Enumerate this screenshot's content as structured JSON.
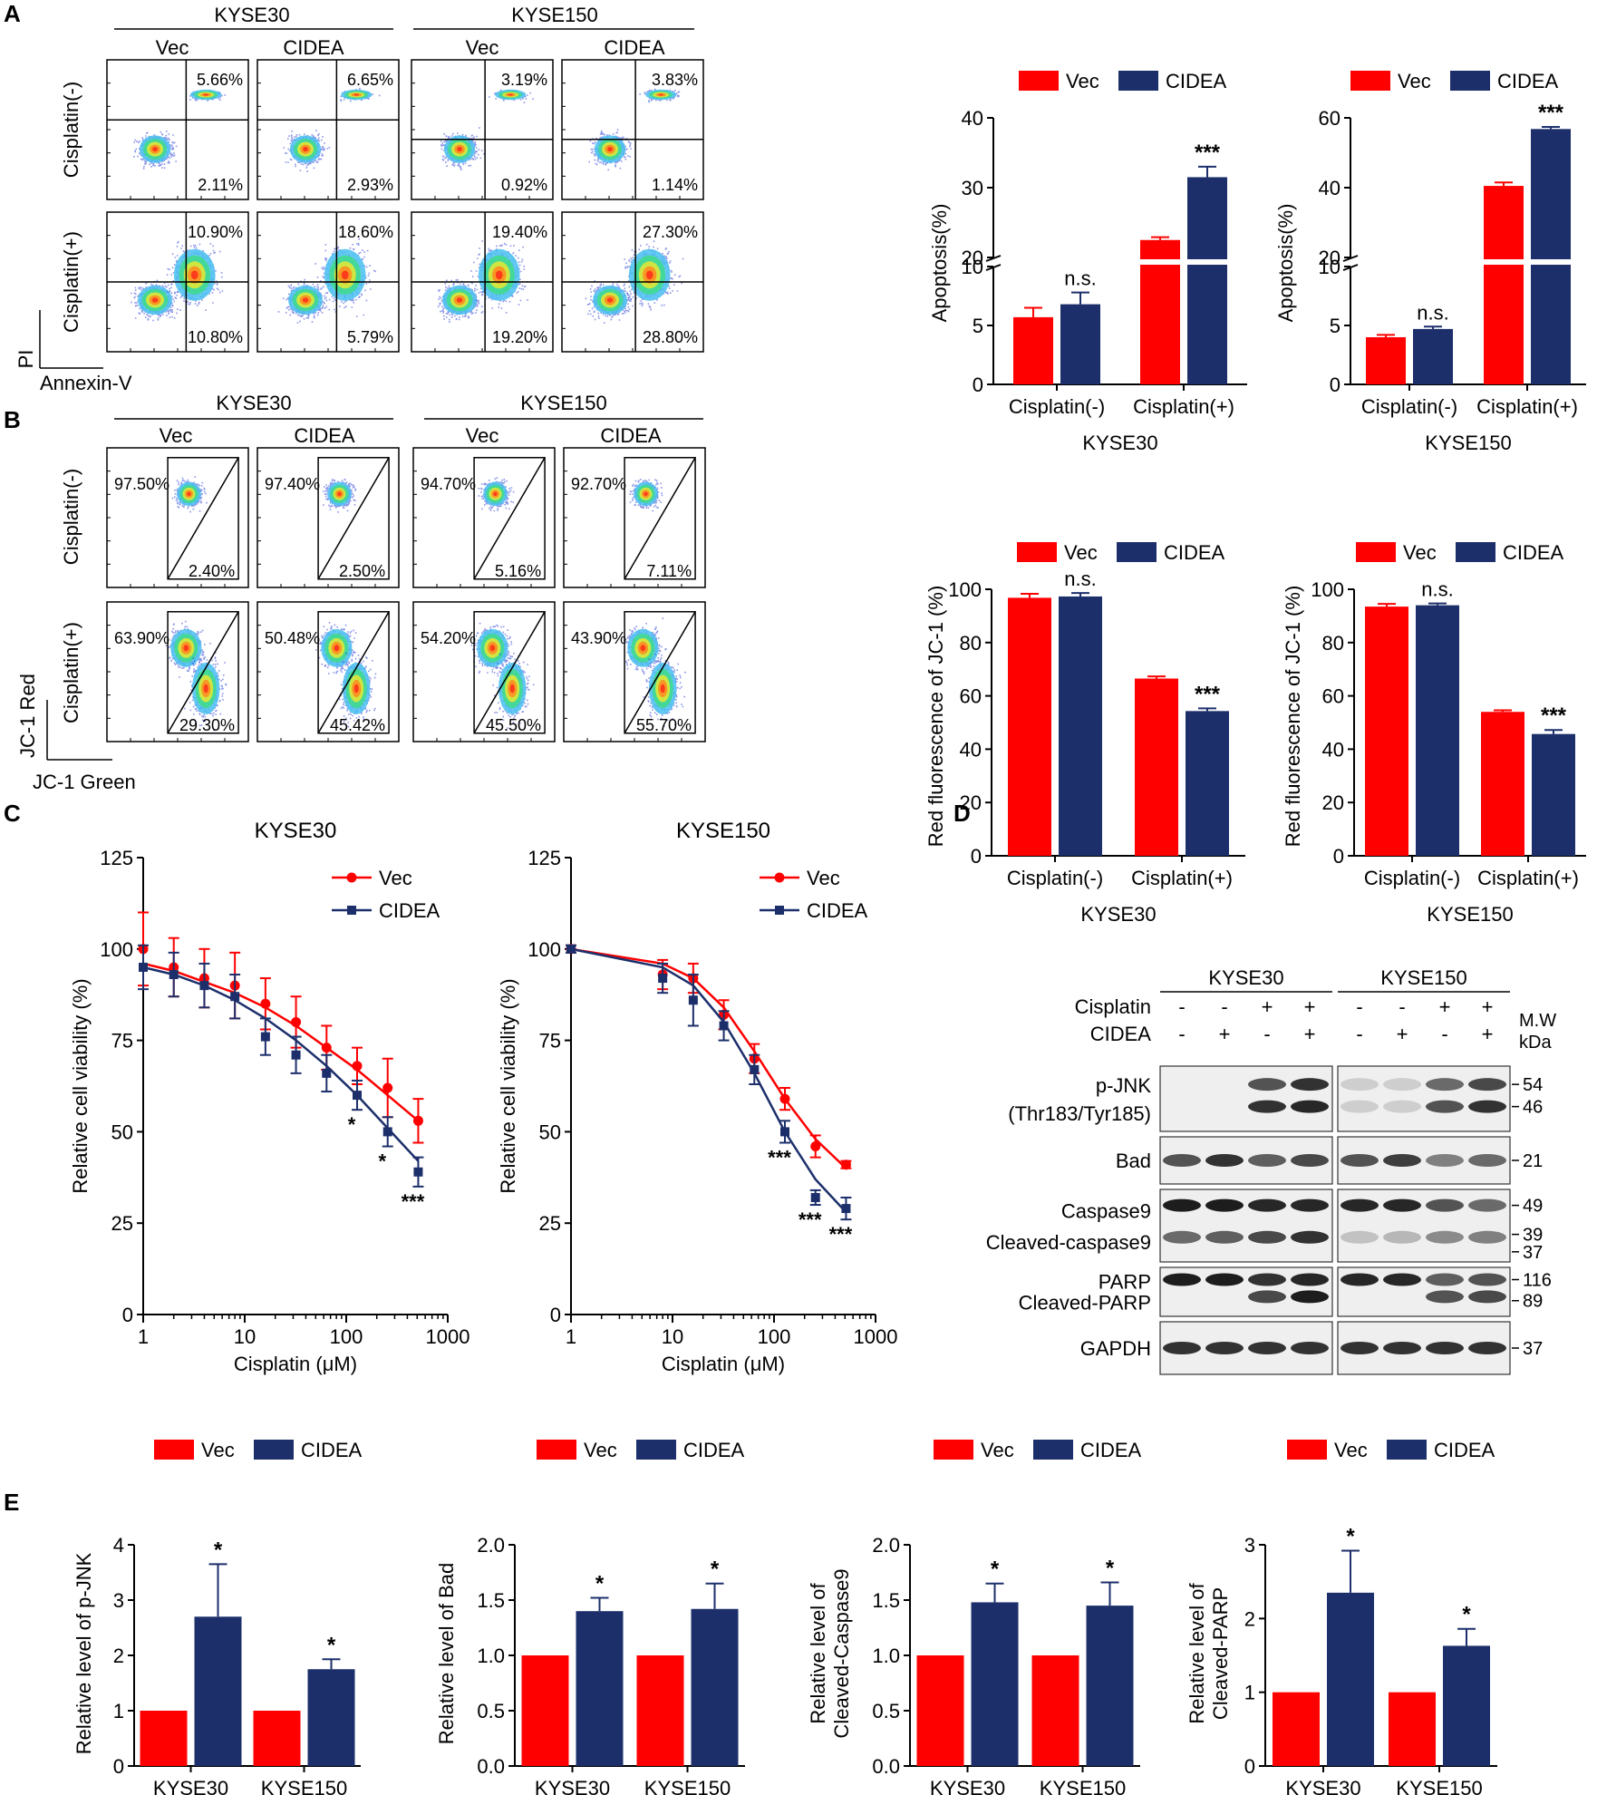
{
  "panel_labels": [
    "A",
    "B",
    "C",
    "D",
    "E"
  ],
  "colors": {
    "vec": "#ff0000",
    "cidea": "#1c2f6b",
    "gate": "#000000"
  },
  "legend": {
    "vec": "Vec",
    "cidea": "CIDEA"
  },
  "flow": {
    "cell_lines": [
      "KYSE30",
      "KYSE150"
    ],
    "conditions": [
      "Vec",
      "CIDEA"
    ],
    "treatments": [
      "Cisplatin(-)",
      "Cisplatin(+)"
    ],
    "a": {
      "x_axis": "Annexin-V",
      "y_axis": "PI",
      "plots": [
        {
          "line": "KYSE30",
          "cond": "Vec",
          "treat": "Cisplatin(-)",
          "upper": "5.66%",
          "lower": "2.11%"
        },
        {
          "line": "KYSE30",
          "cond": "CIDEA",
          "treat": "Cisplatin(-)",
          "upper": "6.65%",
          "lower": "2.93%"
        },
        {
          "line": "KYSE150",
          "cond": "Vec",
          "treat": "Cisplatin(-)",
          "upper": "3.19%",
          "lower": "0.92%"
        },
        {
          "line": "KYSE150",
          "cond": "CIDEA",
          "treat": "Cisplatin(-)",
          "upper": "3.83%",
          "lower": "1.14%"
        },
        {
          "line": "KYSE30",
          "cond": "Vec",
          "treat": "Cisplatin(+)",
          "upper": "10.90%",
          "lower": "10.80%"
        },
        {
          "line": "KYSE30",
          "cond": "CIDEA",
          "treat": "Cisplatin(+)",
          "upper": "18.60%",
          "lower": "5.79%"
        },
        {
          "line": "KYSE150",
          "cond": "Vec",
          "treat": "Cisplatin(+)",
          "upper": "19.40%",
          "lower": "19.20%"
        },
        {
          "line": "KYSE150",
          "cond": "CIDEA",
          "treat": "Cisplatin(+)",
          "upper": "27.30%",
          "lower": "28.80%"
        }
      ]
    },
    "b": {
      "x_axis": "JC-1 Green",
      "y_axis": "JC-1 Red",
      "plots": [
        {
          "line": "KYSE30",
          "cond": "Vec",
          "treat": "Cisplatin(-)",
          "red": "97.50%",
          "green": "2.40%"
        },
        {
          "line": "KYSE30",
          "cond": "CIDEA",
          "treat": "Cisplatin(-)",
          "red": "97.40%",
          "green": "2.50%"
        },
        {
          "line": "KYSE150",
          "cond": "Vec",
          "treat": "Cisplatin(-)",
          "red": "94.70%",
          "green": "5.16%"
        },
        {
          "line": "KYSE150",
          "cond": "CIDEA",
          "treat": "Cisplatin(-)",
          "red": "92.70%",
          "green": "7.11%"
        },
        {
          "line": "KYSE30",
          "cond": "Vec",
          "treat": "Cisplatin(+)",
          "red": "63.90%",
          "green": "29.30%"
        },
        {
          "line": "KYSE30",
          "cond": "CIDEA",
          "treat": "Cisplatin(+)",
          "red": "50.48%",
          "green": "45.42%"
        },
        {
          "line": "KYSE150",
          "cond": "Vec",
          "treat": "Cisplatin(+)",
          "red": "54.20%",
          "green": "45.50%"
        },
        {
          "line": "KYSE150",
          "cond": "CIDEA",
          "treat": "Cisplatin(+)",
          "red": "43.90%",
          "green": "55.70%"
        }
      ]
    }
  },
  "blot": {
    "cell_lines": [
      "KYSE30",
      "KYSE150"
    ],
    "treat_labels": [
      "Cisplatin",
      "CIDEA"
    ],
    "lanes": [
      {
        "cisplatin": "-",
        "cidea": "-"
      },
      {
        "cisplatin": "-",
        "cidea": "+"
      },
      {
        "cisplatin": "+",
        "cidea": "-"
      },
      {
        "cisplatin": "+",
        "cidea": "+"
      }
    ],
    "mw_header": [
      "M.W",
      "kDa"
    ],
    "rows": [
      {
        "labels": [
          "p-JNK",
          "(Thr183/Tyr185)"
        ],
        "mw": [
          "54",
          "46"
        ]
      },
      {
        "labels": [
          "Bad"
        ],
        "mw": [
          "21"
        ]
      },
      {
        "labels": [
          "Caspase9",
          "Cleaved-caspase9"
        ],
        "mw": [
          "49",
          "39",
          "37"
        ]
      },
      {
        "labels": [
          "PARP",
          "Cleaved-PARP"
        ],
        "mw": [
          "116",
          "89"
        ]
      },
      {
        "labels": [
          "GAPDH"
        ],
        "mw": [
          "37"
        ]
      }
    ]
  },
  "chart_data": [
    {
      "type": "bar",
      "id": "a1",
      "title": "",
      "xlabel": "KYSE30",
      "ylabel": "Apoptosis(%)",
      "categories": [
        "Cisplatin(-)",
        "Cisplatin(+)"
      ],
      "series": [
        {
          "name": "Vec",
          "values": [
            5.7,
            22.5
          ],
          "errors": [
            0.8,
            0.4
          ]
        },
        {
          "name": "CIDEA",
          "values": [
            6.8,
            31.5
          ],
          "errors": [
            1.0,
            1.5
          ]
        }
      ],
      "significance": [
        "n.s.",
        "***"
      ],
      "axis_break": [
        10,
        20
      ],
      "yticks": [
        "0",
        "5",
        "10",
        "20",
        "30",
        "40"
      ],
      "ylim": [
        0,
        40
      ]
    },
    {
      "type": "bar",
      "id": "a2",
      "title": "",
      "xlabel": "KYSE150",
      "ylabel": "Apoptosis(%)",
      "categories": [
        "Cisplatin(-)",
        "Cisplatin(+)"
      ],
      "series": [
        {
          "name": "Vec",
          "values": [
            4.0,
            40.5
          ],
          "errors": [
            0.2,
            1.0
          ]
        },
        {
          "name": "CIDEA",
          "values": [
            4.7,
            56.8
          ],
          "errors": [
            0.2,
            0.6
          ]
        }
      ],
      "significance": [
        "n.s.",
        "***"
      ],
      "axis_break": [
        10,
        20
      ],
      "yticks": [
        "0",
        "5",
        "10",
        "20",
        "40",
        "60"
      ],
      "ylim": [
        0,
        60
      ]
    },
    {
      "type": "bar",
      "id": "b1",
      "title": "",
      "xlabel": "KYSE30",
      "ylabel": "Red fluorescence of JC-1 (%)",
      "categories": [
        "Cisplatin(-)",
        "Cisplatin(+)"
      ],
      "series": [
        {
          "name": "Vec",
          "values": [
            96.8,
            66.5
          ],
          "errors": [
            1.5,
            0.8
          ]
        },
        {
          "name": "CIDEA",
          "values": [
            97.3,
            54.3
          ],
          "errors": [
            1.3,
            1.0
          ]
        }
      ],
      "significance": [
        "n.s.",
        "***"
      ],
      "yticks": [
        "0",
        "20",
        "40",
        "60",
        "80",
        "100"
      ],
      "ylim": [
        0,
        100
      ]
    },
    {
      "type": "bar",
      "id": "b2",
      "title": "",
      "xlabel": "KYSE150",
      "ylabel": "Red fluorescence of JC-1 (%)",
      "categories": [
        "Cisplatin(-)",
        "Cisplatin(+)"
      ],
      "series": [
        {
          "name": "Vec",
          "values": [
            93.5,
            54.0
          ],
          "errors": [
            1.0,
            0.6
          ]
        },
        {
          "name": "CIDEA",
          "values": [
            94.0,
            45.7
          ],
          "errors": [
            0.7,
            1.5
          ]
        }
      ],
      "significance": [
        "n.s.",
        "***"
      ],
      "yticks": [
        "0",
        "20",
        "40",
        "60",
        "80",
        "100"
      ],
      "ylim": [
        0,
        100
      ]
    },
    {
      "type": "line",
      "id": "c1",
      "title": "KYSE30",
      "xlabel": "Cisplatin (μM)",
      "ylabel": "Relative cell viability (%)",
      "xscale": "log",
      "xlim": [
        1,
        1000
      ],
      "xticks": [
        "1",
        "10",
        "100",
        "1000"
      ],
      "ylim": [
        0,
        125
      ],
      "yticks": [
        "0",
        "25",
        "50",
        "75",
        "100",
        "125"
      ],
      "series": [
        {
          "name": "Vec",
          "x": [
            1,
            2,
            4,
            8,
            16,
            32,
            64,
            128,
            256,
            512
          ],
          "y": [
            100,
            95,
            92,
            90,
            85,
            80,
            73,
            68,
            62,
            53
          ],
          "errors": [
            10,
            8,
            8,
            9,
            7,
            7,
            6,
            5,
            8,
            6
          ],
          "fit": [
            96,
            94,
            91,
            88,
            84,
            79,
            73,
            67,
            60,
            53
          ]
        },
        {
          "name": "CIDEA",
          "x": [
            1,
            2,
            4,
            8,
            16,
            32,
            64,
            128,
            256,
            512
          ],
          "y": [
            95,
            93,
            90,
            87,
            76,
            71,
            66,
            60,
            50,
            39
          ],
          "errors": [
            6,
            6,
            6,
            6,
            5,
            5,
            5,
            4,
            4,
            4
          ],
          "fit": [
            95,
            93,
            90,
            86,
            81,
            75,
            68,
            60,
            51,
            42
          ]
        }
      ],
      "significance": [
        {
          "x": 128,
          "label": "*"
        },
        {
          "x": 256,
          "label": "*"
        },
        {
          "x": 512,
          "label": "***"
        }
      ]
    },
    {
      "type": "line",
      "id": "c2",
      "title": "KYSE150",
      "xlabel": "Cisplatin (μM)",
      "ylabel": "Relative cell viability (%)",
      "xscale": "log",
      "xlim": [
        1,
        1000
      ],
      "xticks": [
        "1",
        "10",
        "100",
        "1000"
      ],
      "ylim": [
        0,
        125
      ],
      "yticks": [
        "0",
        "25",
        "50",
        "75",
        "100",
        "125"
      ],
      "series": [
        {
          "name": "Vec",
          "x": [
            1,
            8,
            16,
            32,
            64,
            128,
            256,
            512
          ],
          "y": [
            100,
            93,
            92,
            82,
            70,
            59,
            46,
            41
          ],
          "errors": [
            1,
            4,
            4,
            4,
            4,
            3,
            3,
            1
          ],
          "fit": [
            100,
            96,
            92,
            84,
            72,
            59,
            48,
            40
          ]
        },
        {
          "name": "CIDEA",
          "x": [
            1,
            8,
            16,
            32,
            64,
            128,
            256,
            512
          ],
          "y": [
            100,
            92,
            86,
            79,
            67,
            50,
            32,
            29
          ],
          "errors": [
            1,
            4,
            7,
            4,
            4,
            3,
            2,
            3
          ],
          "fit": [
            100,
            95,
            90,
            80,
            66,
            50,
            37,
            28
          ]
        }
      ],
      "significance": [
        {
          "x": 128,
          "label": "***"
        },
        {
          "x": 256,
          "label": "***"
        },
        {
          "x": 512,
          "label": "***"
        }
      ]
    },
    {
      "type": "bar",
      "id": "e1",
      "title": "",
      "xlabel": "",
      "ylabel": "Relative level of p-JNK",
      "categories": [
        "KYSE30",
        "KYSE150"
      ],
      "series": [
        {
          "name": "Vec",
          "values": [
            1.0,
            1.0
          ],
          "errors": [
            0,
            0
          ]
        },
        {
          "name": "CIDEA",
          "values": [
            2.7,
            1.75
          ],
          "errors": [
            0.95,
            0.18
          ]
        }
      ],
      "significance": [
        "*",
        "*"
      ],
      "yticks": [
        "0",
        "1",
        "2",
        "3",
        "4"
      ],
      "ylim": [
        0,
        4
      ]
    },
    {
      "type": "bar",
      "id": "e2",
      "title": "",
      "xlabel": "",
      "ylabel": "Relative level of Bad",
      "categories": [
        "KYSE30",
        "KYSE150"
      ],
      "series": [
        {
          "name": "Vec",
          "values": [
            1.0,
            1.0
          ],
          "errors": [
            0,
            0
          ]
        },
        {
          "name": "CIDEA",
          "values": [
            1.4,
            1.42
          ],
          "errors": [
            0.12,
            0.23
          ]
        }
      ],
      "significance": [
        "*",
        "*"
      ],
      "yticks": [
        "0.0",
        "0.5",
        "1.0",
        "1.5",
        "2.0"
      ],
      "ylim": [
        0,
        2
      ]
    },
    {
      "type": "bar",
      "id": "e3",
      "title": "",
      "xlabel": "",
      "ylabel": "Relative level of Cleaved-Caspase9",
      "categories": [
        "KYSE30",
        "KYSE150"
      ],
      "series": [
        {
          "name": "Vec",
          "values": [
            1.0,
            1.0
          ],
          "errors": [
            0,
            0
          ]
        },
        {
          "name": "CIDEA",
          "values": [
            1.48,
            1.45
          ],
          "errors": [
            0.17,
            0.21
          ]
        }
      ],
      "significance": [
        "*",
        "*"
      ],
      "yticks": [
        "0.0",
        "0.5",
        "1.0",
        "1.5",
        "2.0"
      ],
      "ylim": [
        0,
        2
      ]
    },
    {
      "type": "bar",
      "id": "e4",
      "title": "",
      "xlabel": "",
      "ylabel": "Relative level of Cleaved-PARP",
      "categories": [
        "KYSE30",
        "KYSE150"
      ],
      "series": [
        {
          "name": "Vec",
          "values": [
            1.0,
            1.0
          ],
          "errors": [
            0,
            0
          ]
        },
        {
          "name": "CIDEA",
          "values": [
            2.35,
            1.63
          ],
          "errors": [
            0.57,
            0.23
          ]
        }
      ],
      "significance": [
        "*",
        "*"
      ],
      "yticks": [
        "0",
        "1",
        "2",
        "3"
      ],
      "ylim": [
        0,
        3
      ]
    }
  ]
}
